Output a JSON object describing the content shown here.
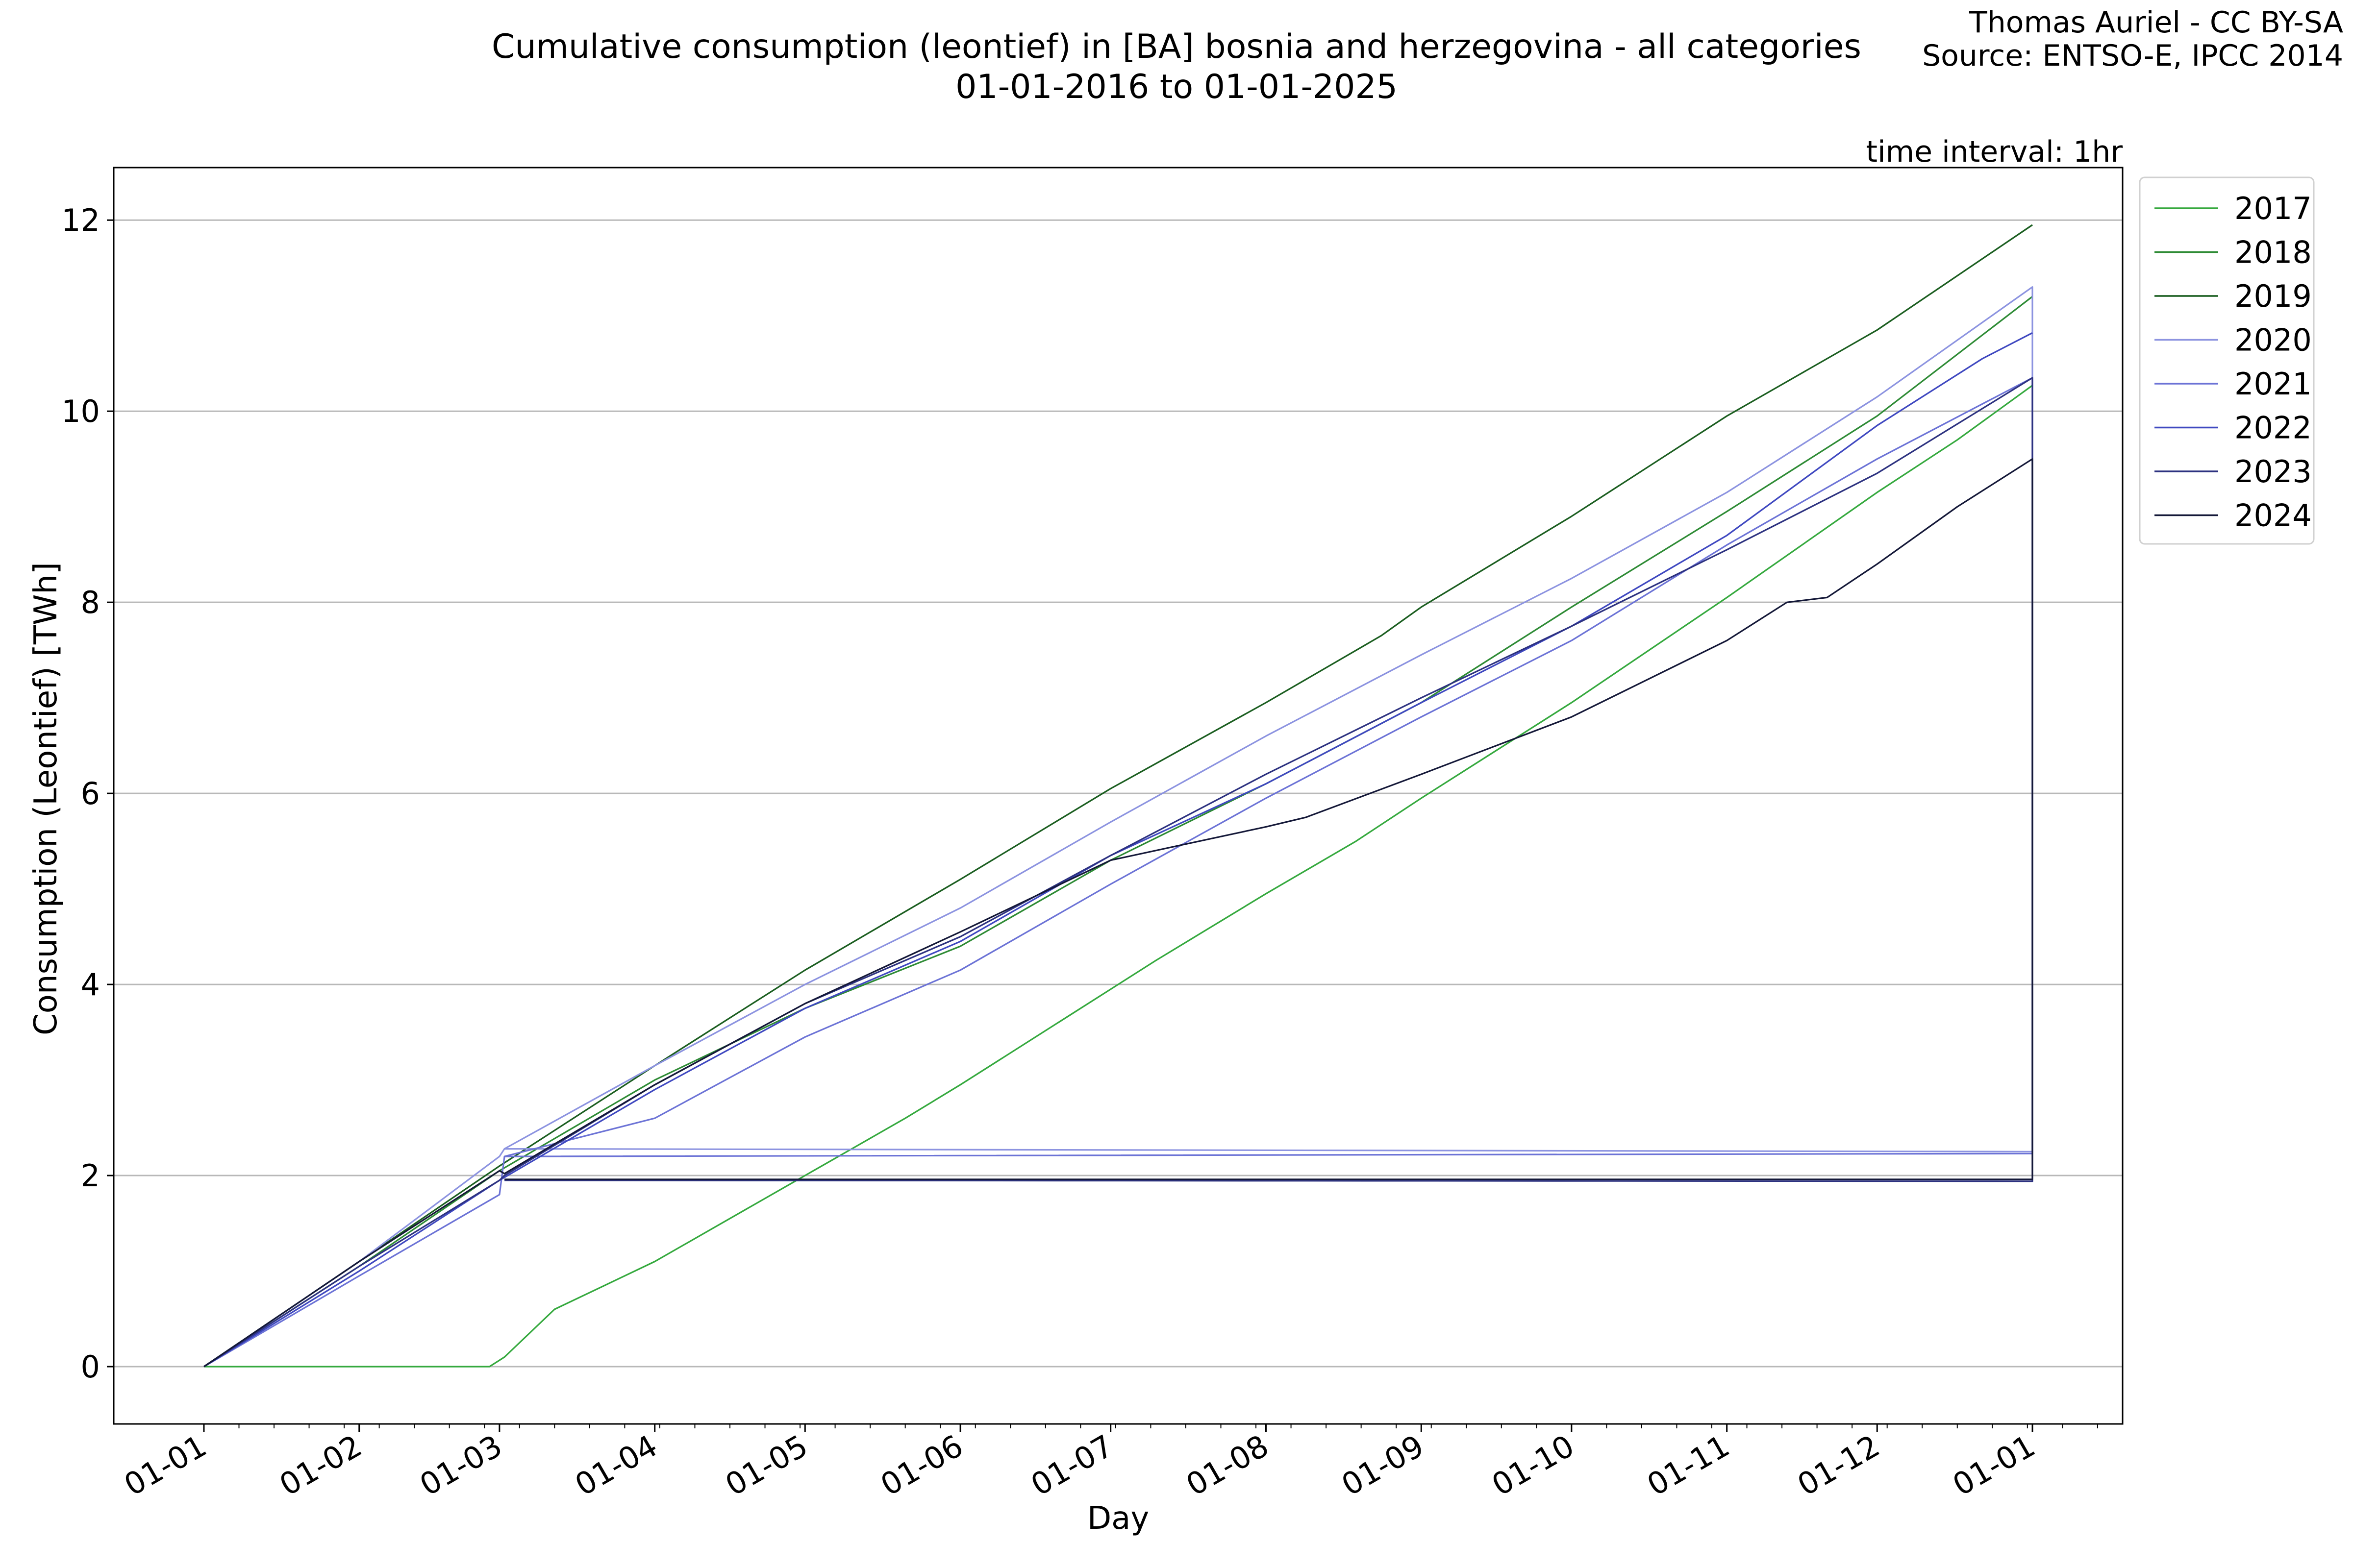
{
  "header": {
    "title_line1": "Cumulative consumption (leontief) in [BA] bosnia and herzegovina - all categories",
    "title_line2": "01-01-2016 to 01-01-2025",
    "credit_author": "Thomas Auriel - CC BY-SA",
    "credit_source": "Source: ENTSO-E, IPCC 2014",
    "interval_note": "time interval: 1hr"
  },
  "chart_data": {
    "type": "line",
    "title": "Cumulative consumption (leontief) in [BA] bosnia and herzegovina - all categories",
    "subtitle": "01-01-2016 to 01-01-2025",
    "xlabel": "Day",
    "ylabel": "Consumption (Leontief) [TWh]",
    "x_tick_labels": [
      "01-01",
      "01-02",
      "01-03",
      "01-04",
      "01-05",
      "01-06",
      "01-07",
      "01-08",
      "01-09",
      "01-10",
      "01-11",
      "01-12",
      "01-01"
    ],
    "x_tick_days": [
      0,
      31,
      59,
      90,
      120,
      151,
      181,
      212,
      243,
      273,
      304,
      334,
      365
    ],
    "xlim": [
      -18,
      383
    ],
    "ylim": [
      -0.6,
      12.55
    ],
    "y_ticks": [
      0,
      2,
      4,
      6,
      8,
      10,
      12
    ],
    "grid": "horizontal",
    "legend_position": "outside right, top",
    "series": [
      {
        "name": "2017",
        "color": "#35a93e",
        "points": [
          [
            0,
            0
          ],
          [
            57,
            0
          ],
          [
            60,
            0.1
          ],
          [
            70,
            0.6
          ],
          [
            80,
            0.85
          ],
          [
            90,
            1.1
          ],
          [
            100,
            1.4
          ],
          [
            110,
            1.7
          ],
          [
            120,
            2.0
          ],
          [
            130,
            2.3
          ],
          [
            140,
            2.6
          ],
          [
            151,
            2.95
          ],
          [
            160,
            3.25
          ],
          [
            181,
            3.95
          ],
          [
            190,
            4.25
          ],
          [
            212,
            4.95
          ],
          [
            230,
            5.5
          ],
          [
            243,
            5.95
          ],
          [
            273,
            6.95
          ],
          [
            304,
            8.05
          ],
          [
            334,
            9.15
          ],
          [
            350,
            9.7
          ],
          [
            365,
            10.27
          ]
        ]
      },
      {
        "name": "2018",
        "color": "#2e8b35",
        "points": [
          [
            0,
            0
          ],
          [
            31,
            1.05
          ],
          [
            59,
            2.05
          ],
          [
            90,
            3.0
          ],
          [
            120,
            3.75
          ],
          [
            151,
            4.4
          ],
          [
            181,
            5.3
          ],
          [
            212,
            6.1
          ],
          [
            243,
            6.95
          ],
          [
            273,
            7.95
          ],
          [
            304,
            8.95
          ],
          [
            334,
            9.95
          ],
          [
            365,
            11.2
          ]
        ]
      },
      {
        "name": "2019",
        "color": "#1b5e20",
        "points": [
          [
            0,
            0
          ],
          [
            31,
            1.1
          ],
          [
            59,
            2.1
          ],
          [
            90,
            3.15
          ],
          [
            120,
            4.15
          ],
          [
            151,
            5.1
          ],
          [
            181,
            6.05
          ],
          [
            212,
            6.95
          ],
          [
            235,
            7.65
          ],
          [
            243,
            7.95
          ],
          [
            273,
            8.9
          ],
          [
            304,
            9.95
          ],
          [
            334,
            10.85
          ],
          [
            365,
            11.95
          ]
        ]
      },
      {
        "name": "2020",
        "color": "#8c93e0",
        "points": [
          [
            0,
            0
          ],
          [
            31,
            1.1
          ],
          [
            59,
            2.2
          ],
          [
            60,
            2.28
          ],
          [
            90,
            3.15
          ],
          [
            120,
            4.0
          ],
          [
            151,
            4.8
          ],
          [
            181,
            5.7
          ],
          [
            212,
            6.6
          ],
          [
            243,
            7.45
          ],
          [
            273,
            8.25
          ],
          [
            304,
            9.15
          ],
          [
            334,
            10.15
          ],
          [
            365,
            11.3
          ],
          [
            365,
            2.25
          ],
          [
            60,
            2.28
          ]
        ]
      },
      {
        "name": "2021",
        "color": "#6c73d6",
        "points": [
          [
            0,
            0
          ],
          [
            31,
            0.95
          ],
          [
            59,
            1.8
          ],
          [
            60,
            2.2
          ],
          [
            90,
            2.6
          ],
          [
            120,
            3.45
          ],
          [
            151,
            4.15
          ],
          [
            181,
            5.05
          ],
          [
            212,
            5.95
          ],
          [
            243,
            6.8
          ],
          [
            273,
            7.6
          ],
          [
            304,
            8.6
          ],
          [
            334,
            9.5
          ],
          [
            365,
            10.35
          ],
          [
            365,
            2.23
          ],
          [
            60,
            2.2
          ]
        ]
      },
      {
        "name": "2022",
        "color": "#3f48c0",
        "points": [
          [
            0,
            0
          ],
          [
            31,
            1.0
          ],
          [
            59,
            1.95
          ],
          [
            90,
            2.9
          ],
          [
            120,
            3.75
          ],
          [
            151,
            4.45
          ],
          [
            181,
            5.35
          ],
          [
            212,
            6.1
          ],
          [
            243,
            6.95
          ],
          [
            273,
            7.75
          ],
          [
            304,
            8.7
          ],
          [
            334,
            9.85
          ],
          [
            355,
            10.55
          ],
          [
            365,
            10.82
          ]
        ]
      },
      {
        "name": "2023",
        "color": "#2d3280",
        "points": [
          [
            0,
            0
          ],
          [
            31,
            1.05
          ],
          [
            59,
            1.95
          ],
          [
            60,
            2.0
          ],
          [
            90,
            2.95
          ],
          [
            120,
            3.8
          ],
          [
            151,
            4.5
          ],
          [
            181,
            5.35
          ],
          [
            212,
            6.2
          ],
          [
            243,
            7.0
          ],
          [
            273,
            7.75
          ],
          [
            304,
            8.55
          ],
          [
            334,
            9.35
          ],
          [
            365,
            10.35
          ],
          [
            365,
            1.94
          ],
          [
            60,
            1.95
          ]
        ]
      },
      {
        "name": "2024",
        "color": "#141838",
        "points": [
          [
            0,
            0
          ],
          [
            31,
            1.1
          ],
          [
            59,
            2.05
          ],
          [
            60,
            2.02
          ],
          [
            90,
            2.95
          ],
          [
            120,
            3.8
          ],
          [
            151,
            4.55
          ],
          [
            181,
            5.3
          ],
          [
            212,
            5.65
          ],
          [
            220,
            5.75
          ],
          [
            243,
            6.2
          ],
          [
            273,
            6.8
          ],
          [
            304,
            7.6
          ],
          [
            316,
            8.0
          ],
          [
            324,
            8.05
          ],
          [
            334,
            8.4
          ],
          [
            350,
            9.0
          ],
          [
            365,
            9.5
          ],
          [
            365,
            1.96
          ],
          [
            60,
            1.96
          ]
        ]
      }
    ]
  }
}
